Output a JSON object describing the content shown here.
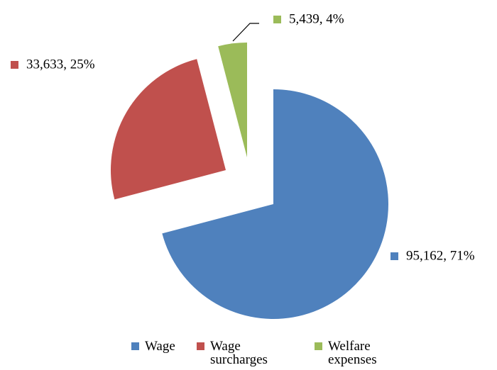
{
  "chart_data": {
    "type": "pie",
    "categories": [
      "Wage",
      "Wage surcharges",
      "Welfare expenses"
    ],
    "values": [
      95162,
      33633,
      5439
    ],
    "value_labels": [
      "95,162, 71%",
      "33,633, 25%",
      "5,439, 4%"
    ],
    "colors": [
      "#4f81bd",
      "#c0504d",
      "#9bbb59"
    ],
    "legend": "bottom"
  }
}
